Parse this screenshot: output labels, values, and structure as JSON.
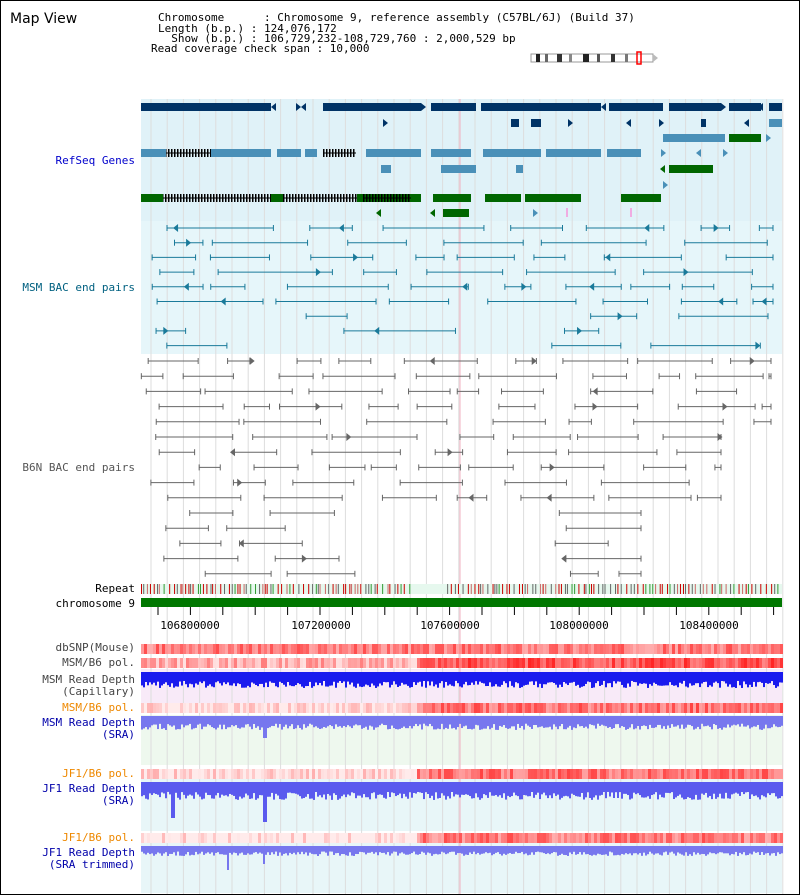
{
  "view_title": "Map View",
  "header": {
    "chromosome": "Chromosome      : Chromosome 9, reference assembly (C57BL/6J) (Build 37)",
    "length": "Length (b.p.) : 124,076,172",
    "show": "  Show (b.p.) : 106,729,232-108,729,760 : 2,000,529 bp",
    "coverage": "Read coverage check span : 10,000"
  },
  "tracks": {
    "refseq": "RefSeq Genes",
    "msm_bac": "MSM BAC end pairs",
    "b6n_bac": "B6N BAC end pairs",
    "repeat": "Repeat",
    "chromosome": "chromosome 9",
    "dbsnp": "dbSNP(Mouse)",
    "msm_b6_pol": "MSM/B6 pol.",
    "msm_depth_cap_1": "MSM Read Depth",
    "msm_depth_cap_2": "(Capillary)",
    "msm_b6_pol2": "MSM/B6 pol.",
    "msm_depth_sra_1": "MSM Read Depth",
    "msm_depth_sra_2": "(SRA)",
    "jf1_b6_pol": "JF1/B6 pol.",
    "jf1_depth_sra_1": "JF1 Read Depth",
    "jf1_depth_sra_2": "(SRA)",
    "jf1_b6_pol2": "JF1/B6 pol.",
    "jf1_depth_trim_1": "JF1 Read Depth",
    "jf1_depth_trim_2": "(SRA trimmed)"
  },
  "positions": [
    "106800000",
    "107200000",
    "107600000",
    "108000000",
    "108400000"
  ],
  "colors": {
    "refseq_label": "#0000cc",
    "msm_label": "#006080",
    "b6n_label": "#555555",
    "orange_label": "#ee8800",
    "blue_label": "#0000aa",
    "gene_dark": "#003366",
    "gene_mid": "#4a90b8",
    "gene_green": "#006600",
    "refseq_bg": "#e0f2f8",
    "msm_bg": "#e6f6fa",
    "chrom_bar": "#007700"
  }
}
